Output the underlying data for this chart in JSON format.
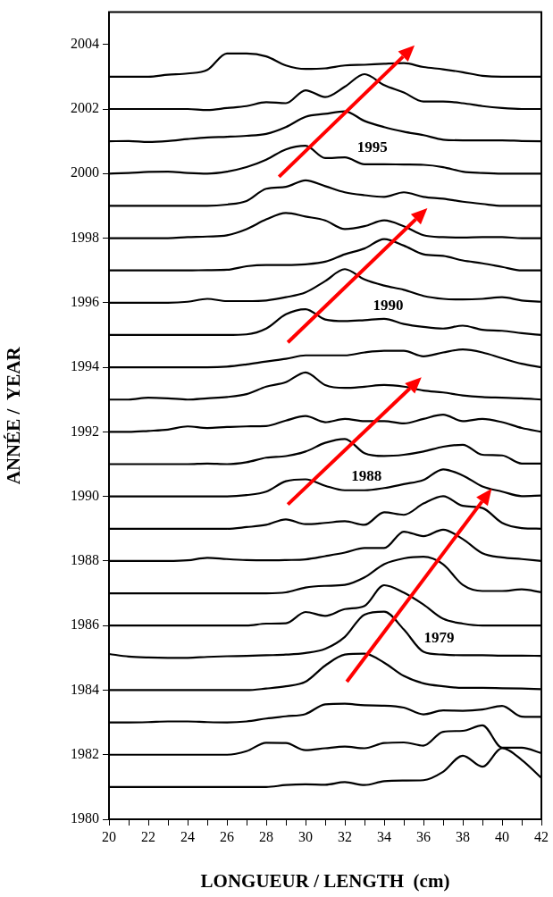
{
  "chart_data": {
    "type": "line",
    "xlabel": "LONGUEUR / LENGTH  (cm)",
    "ylabel": "ANNÉE /  YEAR",
    "x": [
      20,
      21,
      22,
      23,
      24,
      25,
      26,
      27,
      28,
      29,
      30,
      31,
      32,
      33,
      34,
      35,
      36,
      37,
      38,
      39,
      40,
      41,
      42
    ],
    "series": [
      {
        "color": "#000000",
        "values": [
          1981,
          1981,
          1981,
          1981,
          1981,
          1981,
          1981,
          1981,
          1981,
          1981.06,
          1981.08,
          1981.07,
          1981.15,
          1981.06,
          1981.18,
          1981.2,
          1981.21,
          1981.47,
          1981.97,
          1981.63,
          1982.2,
          1981.84,
          1981.28
        ]
      },
      {
        "color": "#000000",
        "values": [
          1982,
          1982,
          1982,
          1982,
          1982,
          1982,
          1982,
          1982.11,
          1982.37,
          1982.36,
          1982.14,
          1982.2,
          1982.25,
          1982.2,
          1982.36,
          1982.38,
          1982.28,
          1982.71,
          1982.74,
          1982.91,
          1982.22,
          1982.22,
          1982.05
        ]
      },
      {
        "color": "#000000",
        "values": [
          1983,
          1983,
          1983.01,
          1983.03,
          1983.03,
          1983.01,
          1983,
          1983.03,
          1983.12,
          1983.19,
          1983.26,
          1983.56,
          1983.58,
          1983.53,
          1983.52,
          1983.46,
          1983.25,
          1983.37,
          1983.36,
          1983.4,
          1983.51,
          1983.18,
          1983.17
        ]
      },
      {
        "color": "#000000",
        "values": [
          1984,
          1984,
          1984,
          1984,
          1984,
          1984,
          1984,
          1984,
          1984.05,
          1984.12,
          1984.26,
          1984.76,
          1985.1,
          1985.13,
          1984.85,
          1984.44,
          1984.21,
          1984.12,
          1984.07,
          1984.07,
          1984.06,
          1984.05,
          1984.03
        ]
      },
      {
        "color": "#000000",
        "values": [
          1985.12,
          1985.04,
          1985.01,
          1985,
          1985,
          1985.03,
          1985.05,
          1985.06,
          1985.08,
          1985.1,
          1985.15,
          1985.28,
          1985.65,
          1986.34,
          1986.43,
          1985.88,
          1985.19,
          1985.1,
          1985.08,
          1985.08,
          1985.07,
          1985.07,
          1985.06
        ]
      },
      {
        "color": "#000000",
        "values": [
          1986,
          1986,
          1986,
          1986,
          1986,
          1986,
          1986,
          1986,
          1986.06,
          1986.07,
          1986.42,
          1986.3,
          1986.51,
          1986.61,
          1987.25,
          1987.02,
          1986.65,
          1986.21,
          1986.06,
          1986,
          1986,
          1986,
          1986
        ]
      },
      {
        "color": "#000000",
        "values": [
          1987,
          1987,
          1987,
          1987,
          1987,
          1987,
          1987,
          1987,
          1987,
          1987.03,
          1987.18,
          1987.23,
          1987.26,
          1987.49,
          1987.9,
          1988.08,
          1988.13,
          1987.9,
          1987.26,
          1987.07,
          1987.07,
          1987.12,
          1987.03
        ]
      },
      {
        "color": "#000000",
        "values": [
          1988,
          1988,
          1988,
          1988,
          1988.02,
          1988.1,
          1988.06,
          1988.03,
          1988.02,
          1988.03,
          1988.05,
          1988.15,
          1988.26,
          1988.4,
          1988.4,
          1988.91,
          1988.77,
          1988.97,
          1988.68,
          1988.24,
          1988.11,
          1988.06,
          1988
        ]
      },
      {
        "color": "#000000",
        "values": [
          1989,
          1989,
          1989,
          1989,
          1989,
          1989,
          1989,
          1989.05,
          1989.12,
          1989.29,
          1989.14,
          1989.18,
          1989.23,
          1989.12,
          1989.51,
          1989.43,
          1989.78,
          1990.01,
          1989.71,
          1989.64,
          1989.18,
          1989.02,
          1989
        ]
      },
      {
        "color": "#000000",
        "values": [
          1990,
          1990,
          1990,
          1990,
          1990,
          1990,
          1990,
          1990.04,
          1990.15,
          1990.47,
          1990.53,
          1990.33,
          1990.19,
          1990.19,
          1990.26,
          1990.38,
          1990.51,
          1990.84,
          1990.65,
          1990.31,
          1990.15,
          1990.01,
          1990.03
        ]
      },
      {
        "color": "#000000",
        "values": [
          1991,
          1991,
          1991,
          1991,
          1991,
          1991.02,
          1991,
          1991.06,
          1991.2,
          1991.25,
          1991.39,
          1991.66,
          1991.78,
          1991.34,
          1991.25,
          1991.29,
          1991.39,
          1991.54,
          1991.6,
          1991.29,
          1991.27,
          1991.02,
          1991.02
        ]
      },
      {
        "color": "#000000",
        "values": [
          1992,
          1992,
          1992.03,
          1992.07,
          1992.17,
          1992.12,
          1992.15,
          1992.17,
          1992.18,
          1992.35,
          1992.49,
          1992.3,
          1992.4,
          1992.33,
          1992.33,
          1992.26,
          1992.4,
          1992.53,
          1992.33,
          1992.4,
          1992.3,
          1992.12,
          1992
        ]
      },
      {
        "color": "#000000",
        "values": [
          1993,
          1993,
          1993.06,
          1993.04,
          1993,
          1993.04,
          1993.08,
          1993.17,
          1993.4,
          1993.54,
          1993.84,
          1993.45,
          1993.36,
          1993.4,
          1993.45,
          1993.4,
          1993.28,
          1993.22,
          1993.13,
          1993.08,
          1993.06,
          1993.04,
          1993
        ]
      },
      {
        "color": "#000000",
        "values": [
          1994,
          1994,
          1994,
          1994,
          1994,
          1994,
          1994.02,
          1994.09,
          1994.18,
          1994.26,
          1994.37,
          1994.37,
          1994.37,
          1994.46,
          1994.51,
          1994.51,
          1994.34,
          1994.46,
          1994.55,
          1994.46,
          1994.28,
          1994.11,
          1994
        ]
      },
      {
        "color": "#000000",
        "values": [
          1995,
          1995,
          1995,
          1995,
          1995,
          1995,
          1995,
          1995.02,
          1995.2,
          1995.64,
          1995.8,
          1995.48,
          1995.43,
          1995.46,
          1995.5,
          1995.34,
          1995.25,
          1995.2,
          1995.29,
          1995.16,
          1995.13,
          1995.06,
          1995
        ]
      },
      {
        "color": "#000000",
        "values": [
          1996,
          1996,
          1996,
          1996,
          1996.03,
          1996.12,
          1996.05,
          1996.05,
          1996.07,
          1996.17,
          1996.32,
          1996.67,
          1997.04,
          1996.72,
          1996.53,
          1996.4,
          1996.21,
          1996.12,
          1996.1,
          1996.12,
          1996.17,
          1996.07,
          1996.03
        ]
      },
      {
        "color": "#000000",
        "values": [
          1997,
          1997,
          1997,
          1997,
          1997,
          1997.01,
          1997.02,
          1997.13,
          1997.17,
          1997.17,
          1997.19,
          1997.27,
          1997.5,
          1997.68,
          1997.97,
          1997.77,
          1997.5,
          1997.45,
          1997.31,
          1997.22,
          1997.11,
          1997,
          1997
        ]
      },
      {
        "color": "#000000",
        "values": [
          1998,
          1998,
          1998,
          1998,
          1998.03,
          1998.05,
          1998.09,
          1998.28,
          1998.58,
          1998.78,
          1998.67,
          1998.55,
          1998.28,
          1998.37,
          1998.55,
          1998.37,
          1998.09,
          1998.03,
          1998.02,
          1998.03,
          1998.03,
          1998,
          1998
        ]
      },
      {
        "color": "#000000",
        "values": [
          1999,
          1999,
          1999,
          1999,
          1999,
          1999,
          1999.04,
          1999.15,
          1999.53,
          1999.59,
          1999.79,
          1999.61,
          1999.42,
          1999.33,
          1999.28,
          1999.42,
          1999.28,
          1999.22,
          1999.13,
          1999.06,
          1999,
          1999,
          1999
        ]
      },
      {
        "color": "#000000",
        "values": [
          2000,
          2000.02,
          2000.05,
          2000.06,
          2000.02,
          2000,
          2000.06,
          2000.2,
          2000.43,
          2000.75,
          2000.86,
          2000.48,
          2000.5,
          2000.29,
          2000.29,
          2000.28,
          2000.27,
          2000.2,
          2000.06,
          2000.02,
          2000,
          2000,
          2000
        ]
      },
      {
        "color": "#000000",
        "values": [
          2001,
          2001.01,
          2000.98,
          2001.01,
          2001.07,
          2001.12,
          2001.14,
          2001.17,
          2001.23,
          2001.44,
          2001.76,
          2001.85,
          2001.93,
          2001.63,
          2001.44,
          2001.3,
          2001.19,
          2001.05,
          2001.03,
          2001.03,
          2001.03,
          2001.01,
          2001
        ]
      },
      {
        "color": "#000000",
        "values": [
          2002,
          2002,
          2002,
          2002,
          2002,
          2001.97,
          2002.03,
          2002.09,
          2002.21,
          2002.18,
          2002.58,
          2002.37,
          2002.69,
          2003.08,
          2002.74,
          2002.51,
          2002.23,
          2002.23,
          2002.18,
          2002.09,
          2002.03,
          2002,
          2002
        ]
      },
      {
        "color": "#000000",
        "values": [
          2003,
          2003,
          2003,
          2003.06,
          2003.1,
          2003.21,
          2003.72,
          2003.72,
          2003.63,
          2003.35,
          2003.24,
          2003.26,
          2003.35,
          2003.37,
          2003.4,
          2003.42,
          2003.3,
          2003.23,
          2003.14,
          2003.03,
          2003,
          2003,
          2003
        ]
      }
    ],
    "annotations": [
      "1995",
      "1990",
      "1988",
      "1979"
    ],
    "xlim": [
      20,
      42
    ],
    "ylim": [
      1980,
      2005
    ],
    "xticks": [
      20,
      {
        "value": 21,
        "label": null
      },
      22,
      {
        "value": 23,
        "label": null
      },
      24,
      {
        "value": 25,
        "label": null
      },
      26,
      {
        "value": 27,
        "label": null
      },
      28,
      {
        "value": 29,
        "label": null
      },
      30,
      {
        "value": 31,
        "label": null
      },
      32,
      {
        "value": 33,
        "label": null
      },
      34,
      {
        "value": 35,
        "label": null
      },
      36,
      {
        "value": 37,
        "label": null
      },
      38,
      {
        "value": 39,
        "label": null
      },
      40,
      {
        "value": 41,
        "label": null
      },
      42
    ],
    "yticks": [
      1980,
      1982,
      1984,
      1986,
      1988,
      1990,
      1992,
      1994,
      1996,
      1998,
      2000,
      2002,
      2004
    ],
    "legend": false,
    "grid": false,
    "marker": "none",
    "line_style": "solid"
  }
}
